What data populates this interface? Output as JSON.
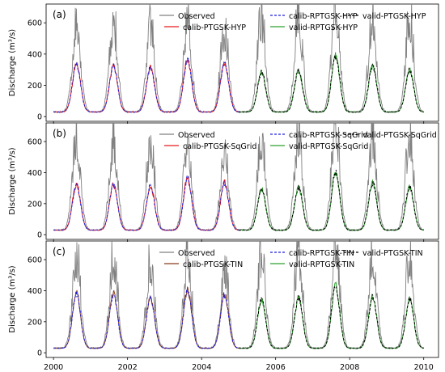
{
  "figure": {
    "x_ticks": [
      "2000",
      "2002",
      "2004",
      "2006",
      "2008",
      "2010"
    ]
  },
  "chart_data": [
    {
      "type": "line",
      "panel_label": "(a)",
      "ylabel": "Discharge (m³/s)",
      "xlabel": "",
      "xlim": [
        1999.8,
        2010.4
      ],
      "ylim": [
        -30,
        720
      ],
      "y_ticks": [
        0,
        200,
        400,
        600
      ],
      "x_ticks": [
        2000,
        2002,
        2004,
        2006,
        2008,
        2010
      ],
      "legend": {
        "placement": "top-right",
        "entries": [
          "Observed",
          "calib-RPTGSK-HYP",
          "valid-PTGSK-HYP",
          "calib-PTGSK-HYP",
          "valid-RPTGSK-HYP"
        ]
      },
      "calib_period": [
        2000.0,
        2005.0
      ],
      "valid_period": [
        2005.0,
        2010.0
      ],
      "annual_peak_date": 0.62,
      "observed_peaks": [
        640,
        615,
        600,
        620,
        560,
        640,
        650,
        740,
        650,
        640
      ],
      "simulated_peaks": [
        340,
        330,
        320,
        370,
        350,
        290,
        300,
        400,
        330,
        300
      ],
      "baseflow": 30,
      "series": [
        {
          "name": "Observed",
          "color": "#808080",
          "dash": "solid",
          "role": "observed"
        },
        {
          "name": "calib-PTGSK-HYP",
          "color": "#e41a1c",
          "dash": "solid",
          "role": "calib"
        },
        {
          "name": "calib-RPTGSK-HYP",
          "color": "#1f1fd6",
          "dash": "dashed",
          "role": "calib"
        },
        {
          "name": "valid-RPTGSK-HYP",
          "color": "#2ca02c",
          "dash": "solid",
          "role": "valid"
        },
        {
          "name": "valid-PTGSK-HYP",
          "color": "#000000",
          "dash": "dashed",
          "role": "valid"
        }
      ]
    },
    {
      "type": "line",
      "panel_label": "(b)",
      "ylabel": "Discharge (m³/s)",
      "xlabel": "",
      "xlim": [
        1999.8,
        2010.4
      ],
      "ylim": [
        -30,
        720
      ],
      "y_ticks": [
        0,
        200,
        400,
        600
      ],
      "x_ticks": [
        2000,
        2002,
        2004,
        2006,
        2008,
        2010
      ],
      "legend": {
        "placement": "top-right",
        "entries": [
          "Observed",
          "calib-RPTGSK-SqGrid",
          "valid-PTGSK-SqGrid",
          "calib-PTGSK-SqGrid",
          "valid-RPTGSK-SqGrid"
        ]
      },
      "calib_period": [
        2000.0,
        2005.0
      ],
      "valid_period": [
        2005.0,
        2010.0
      ],
      "annual_peak_date": 0.62,
      "observed_peaks": [
        640,
        615,
        600,
        620,
        560,
        640,
        650,
        740,
        650,
        640
      ],
      "simulated_peaks": [
        330,
        330,
        320,
        370,
        340,
        300,
        310,
        410,
        340,
        310
      ],
      "baseflow": 30,
      "series": [
        {
          "name": "Observed",
          "color": "#808080",
          "dash": "solid",
          "role": "observed"
        },
        {
          "name": "calib-PTGSK-SqGrid",
          "color": "#e41a1c",
          "dash": "solid",
          "role": "calib"
        },
        {
          "name": "calib-RPTGSK-SqGrid",
          "color": "#1f1fd6",
          "dash": "dashed",
          "role": "calib"
        },
        {
          "name": "valid-RPTGSK-SqGrid",
          "color": "#2ca02c",
          "dash": "solid",
          "role": "valid"
        },
        {
          "name": "valid-PTGSK-SqGrid",
          "color": "#000000",
          "dash": "dashed",
          "role": "valid"
        }
      ]
    },
    {
      "type": "line",
      "panel_label": "(c)",
      "ylabel": "Discharge (m³/s)",
      "xlabel": "",
      "xlim": [
        1999.8,
        2010.4
      ],
      "ylim": [
        -30,
        720
      ],
      "y_ticks": [
        0,
        200,
        400,
        600
      ],
      "x_ticks": [
        2000,
        2002,
        2004,
        2006,
        2008,
        2010
      ],
      "legend": {
        "placement": "top-right",
        "entries": [
          "Observed",
          "calib-RPTGSK-TIN",
          "valid-PTGSK-TIN",
          "calib-PTGSK-TIN",
          "valid-RPTGSK-TIN"
        ]
      },
      "calib_period": [
        2000.0,
        2005.0
      ],
      "valid_period": [
        2005.0,
        2010.0
      ],
      "annual_peak_date": 0.62,
      "observed_peaks": [
        640,
        615,
        600,
        620,
        560,
        640,
        650,
        740,
        650,
        640
      ],
      "simulated_peaks": [
        390,
        390,
        360,
        410,
        380,
        350,
        360,
        440,
        370,
        350
      ],
      "baseflow": 30,
      "series": [
        {
          "name": "Observed",
          "color": "#808080",
          "dash": "solid",
          "role": "observed"
        },
        {
          "name": "calib-PTGSK-TIN",
          "color": "#8b3a1a",
          "dash": "solid",
          "role": "calib"
        },
        {
          "name": "calib-RPTGSK-TIN",
          "color": "#1f1fd6",
          "dash": "dashed",
          "role": "calib"
        },
        {
          "name": "valid-RPTGSK-TIN",
          "color": "#2ca02c",
          "dash": "solid",
          "role": "valid"
        },
        {
          "name": "valid-PTGSK-TIN",
          "color": "#000000",
          "dash": "dashed",
          "role": "valid"
        }
      ]
    }
  ]
}
